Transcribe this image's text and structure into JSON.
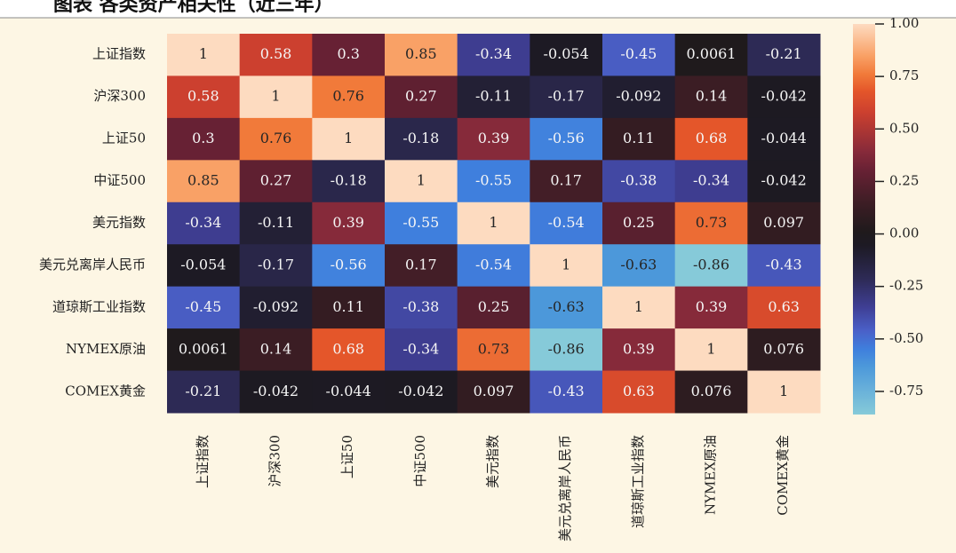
{
  "chart_data": {
    "type": "heatmap",
    "title": "图表  各类资产相关性（近三年）",
    "cmap": "icefire",
    "rows": [
      "上证指数",
      "沪深300",
      "上证50",
      "中证500",
      "美元指数",
      "美元兑离岸人民币",
      "道琼斯工业指数",
      "NYMEX原油",
      "COMEX黄金"
    ],
    "columns": [
      "上证指数",
      "沪深300",
      "上证50",
      "中证500",
      "美元指数",
      "美元兑离岸人民币",
      "道琼斯工业指数",
      "NYMEX原油",
      "COMEX黄金"
    ],
    "values": [
      [
        1,
        0.58,
        0.3,
        0.85,
        -0.34,
        -0.054,
        -0.45,
        0.0061,
        -0.21
      ],
      [
        0.58,
        1,
        0.76,
        0.27,
        -0.11,
        -0.17,
        -0.092,
        0.14,
        -0.042
      ],
      [
        0.3,
        0.76,
        1,
        -0.18,
        0.39,
        -0.56,
        0.11,
        0.68,
        -0.044
      ],
      [
        0.85,
        0.27,
        -0.18,
        1,
        -0.55,
        0.17,
        -0.38,
        -0.34,
        -0.042
      ],
      [
        -0.34,
        -0.11,
        0.39,
        -0.55,
        1,
        -0.54,
        0.25,
        0.73,
        0.097
      ],
      [
        -0.054,
        -0.17,
        -0.56,
        0.17,
        -0.54,
        1,
        -0.63,
        -0.86,
        -0.43
      ],
      [
        -0.45,
        -0.092,
        0.11,
        -0.38,
        0.25,
        -0.63,
        1,
        0.39,
        0.63
      ],
      [
        0.0061,
        0.14,
        0.68,
        -0.34,
        0.73,
        -0.86,
        0.39,
        1,
        0.076
      ],
      [
        -0.21,
        -0.042,
        -0.044,
        -0.042,
        0.097,
        -0.43,
        0.63,
        0.076,
        1
      ]
    ],
    "clim": [
      -0.86,
      1
    ],
    "cticks": [
      {
        "value": 1,
        "label": "1.00"
      },
      {
        "value": 0.75,
        "label": "0.75"
      },
      {
        "value": 0.5,
        "label": "0.50"
      },
      {
        "value": 0.25,
        "label": "0.25"
      },
      {
        "value": 0,
        "label": "0.00"
      },
      {
        "value": -0.25,
        "label": "-0.25"
      },
      {
        "value": -0.5,
        "label": "-0.50"
      },
      {
        "value": -0.75,
        "label": "-0.75"
      }
    ]
  }
}
